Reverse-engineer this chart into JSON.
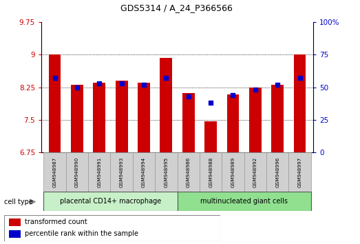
{
  "title": "GDS5314 / A_24_P366566",
  "samples": [
    "GSM948987",
    "GSM948990",
    "GSM948991",
    "GSM948993",
    "GSM948994",
    "GSM948995",
    "GSM948986",
    "GSM948988",
    "GSM948989",
    "GSM948992",
    "GSM948996",
    "GSM948997"
  ],
  "transformed_counts": [
    9.0,
    8.3,
    8.36,
    8.4,
    8.36,
    8.93,
    8.12,
    7.47,
    8.08,
    8.25,
    8.3,
    9.0
  ],
  "percentile_ranks": [
    57,
    50,
    53,
    53,
    52,
    57,
    43,
    38,
    44,
    48,
    52,
    57
  ],
  "group1_label": "placental CD14+ macrophage",
  "group2_label": "multinucleated giant cells",
  "group1_count": 6,
  "group2_count": 6,
  "ylim_left": [
    6.75,
    9.75
  ],
  "ylim_right": [
    0,
    100
  ],
  "yticks_left": [
    6.75,
    7.5,
    8.25,
    9.0,
    9.75
  ],
  "yticks_right": [
    0,
    25,
    50,
    75,
    100
  ],
  "ytick_labels_left": [
    "6.75",
    "7.5",
    "8.25",
    "9",
    "9.75"
  ],
  "ytick_labels_right": [
    "0",
    "25",
    "50",
    "75",
    "100%"
  ],
  "bar_color": "#cc0000",
  "dot_color": "#0000cc",
  "bar_width": 0.55,
  "bg_plot": "#ffffff",
  "left_tick_color": "#cc0000",
  "right_tick_color": "#0000cc",
  "group1_bg": "#c8f0c8",
  "group2_bg": "#90e090",
  "tick_bg": "#d0d0d0",
  "legend_red_label": "transformed count",
  "legend_blue_label": "percentile rank within the sample",
  "cell_type_label": "cell type"
}
